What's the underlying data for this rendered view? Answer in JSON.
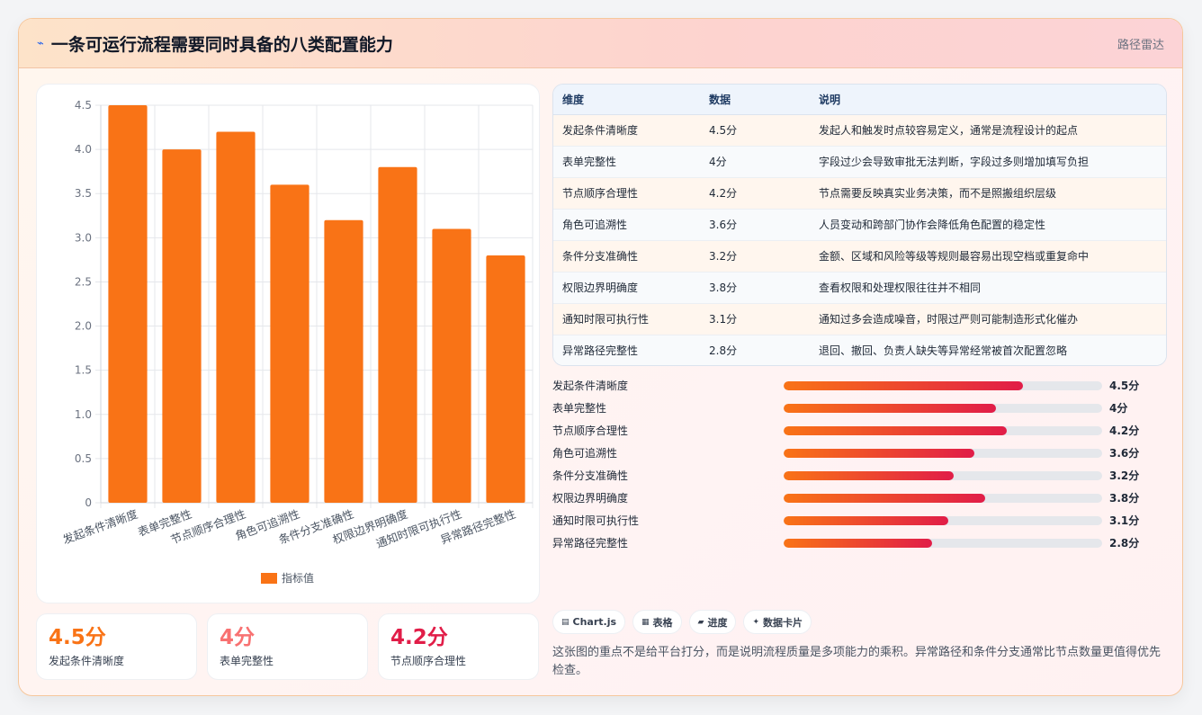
{
  "header": {
    "title": "一条可运行流程需要同时具备的八类配置能力",
    "tag": "路径雷达",
    "icon": "chart-icon"
  },
  "chart_data": {
    "type": "bar",
    "categories": [
      "发起条件清晰度",
      "表单完整性",
      "节点顺序合理性",
      "角色可追溯性",
      "条件分支准确性",
      "权限边界明确度",
      "通知时限可执行性",
      "异常路径完整性"
    ],
    "series": [
      {
        "name": "指标值",
        "values": [
          4.5,
          4,
          4.2,
          3.6,
          3.2,
          3.8,
          3.1,
          2.8
        ],
        "color": "#f97316"
      }
    ],
    "y_ticks": [
      "0",
      "0.5",
      "1.0",
      "1.5",
      "2.0",
      "2.5",
      "3.0",
      "3.5",
      "4.0",
      "4.5"
    ],
    "ylim": [
      0,
      4.5
    ],
    "grid": true,
    "legend": "bottom"
  },
  "stats": [
    {
      "value": "4.5分",
      "label": "发起条件清晰度",
      "color": "#f97316"
    },
    {
      "value": "4分",
      "label": "表单完整性",
      "color": "#f87171"
    },
    {
      "value": "4.2分",
      "label": "节点顺序合理性",
      "color": "#e11d48"
    }
  ],
  "table": {
    "headers": [
      "维度",
      "数据",
      "说明"
    ],
    "rows": [
      [
        "发起条件清晰度",
        "4.5分",
        "发起人和触发时点较容易定义，通常是流程设计的起点"
      ],
      [
        "表单完整性",
        "4分",
        "字段过少会导致审批无法判断，字段过多则增加填写负担"
      ],
      [
        "节点顺序合理性",
        "4.2分",
        "节点需要反映真实业务决策，而不是照搬组织层级"
      ],
      [
        "角色可追溯性",
        "3.6分",
        "人员变动和跨部门协作会降低角色配置的稳定性"
      ],
      [
        "条件分支准确性",
        "3.2分",
        "金额、区域和风险等级等规则最容易出现空档或重复命中"
      ],
      [
        "权限边界明确度",
        "3.8分",
        "查看权限和处理权限往往并不相同"
      ],
      [
        "通知时限可执行性",
        "3.1分",
        "通知过多会造成噪音，时限过严则可能制造形式化催办"
      ],
      [
        "异常路径完整性",
        "2.8分",
        "退回、撤回、负责人缺失等异常经常被首次配置忽略"
      ]
    ]
  },
  "progress": {
    "max": 6,
    "items": [
      {
        "label": "发起条件清晰度",
        "value": 4.5,
        "text": "4.5分"
      },
      {
        "label": "表单完整性",
        "value": 4,
        "text": "4分"
      },
      {
        "label": "节点顺序合理性",
        "value": 4.2,
        "text": "4.2分"
      },
      {
        "label": "角色可追溯性",
        "value": 3.6,
        "text": "3.6分"
      },
      {
        "label": "条件分支准确性",
        "value": 3.2,
        "text": "3.2分"
      },
      {
        "label": "权限边界明确度",
        "value": 3.8,
        "text": "3.8分"
      },
      {
        "label": "通知时限可执行性",
        "value": 3.1,
        "text": "3.1分"
      },
      {
        "label": "异常路径完整性",
        "value": 2.8,
        "text": "2.8分"
      }
    ]
  },
  "chips": [
    {
      "icon": "▤",
      "label": "Chart.js"
    },
    {
      "icon": "▦",
      "label": "表格"
    },
    {
      "icon": "▰",
      "label": "进度"
    },
    {
      "icon": "✦",
      "label": "数据卡片"
    }
  ],
  "note": "这张图的重点不是给平台打分，而是说明流程质量是多项能力的乘积。异常路径和条件分支通常比节点数量更值得优先检查。"
}
